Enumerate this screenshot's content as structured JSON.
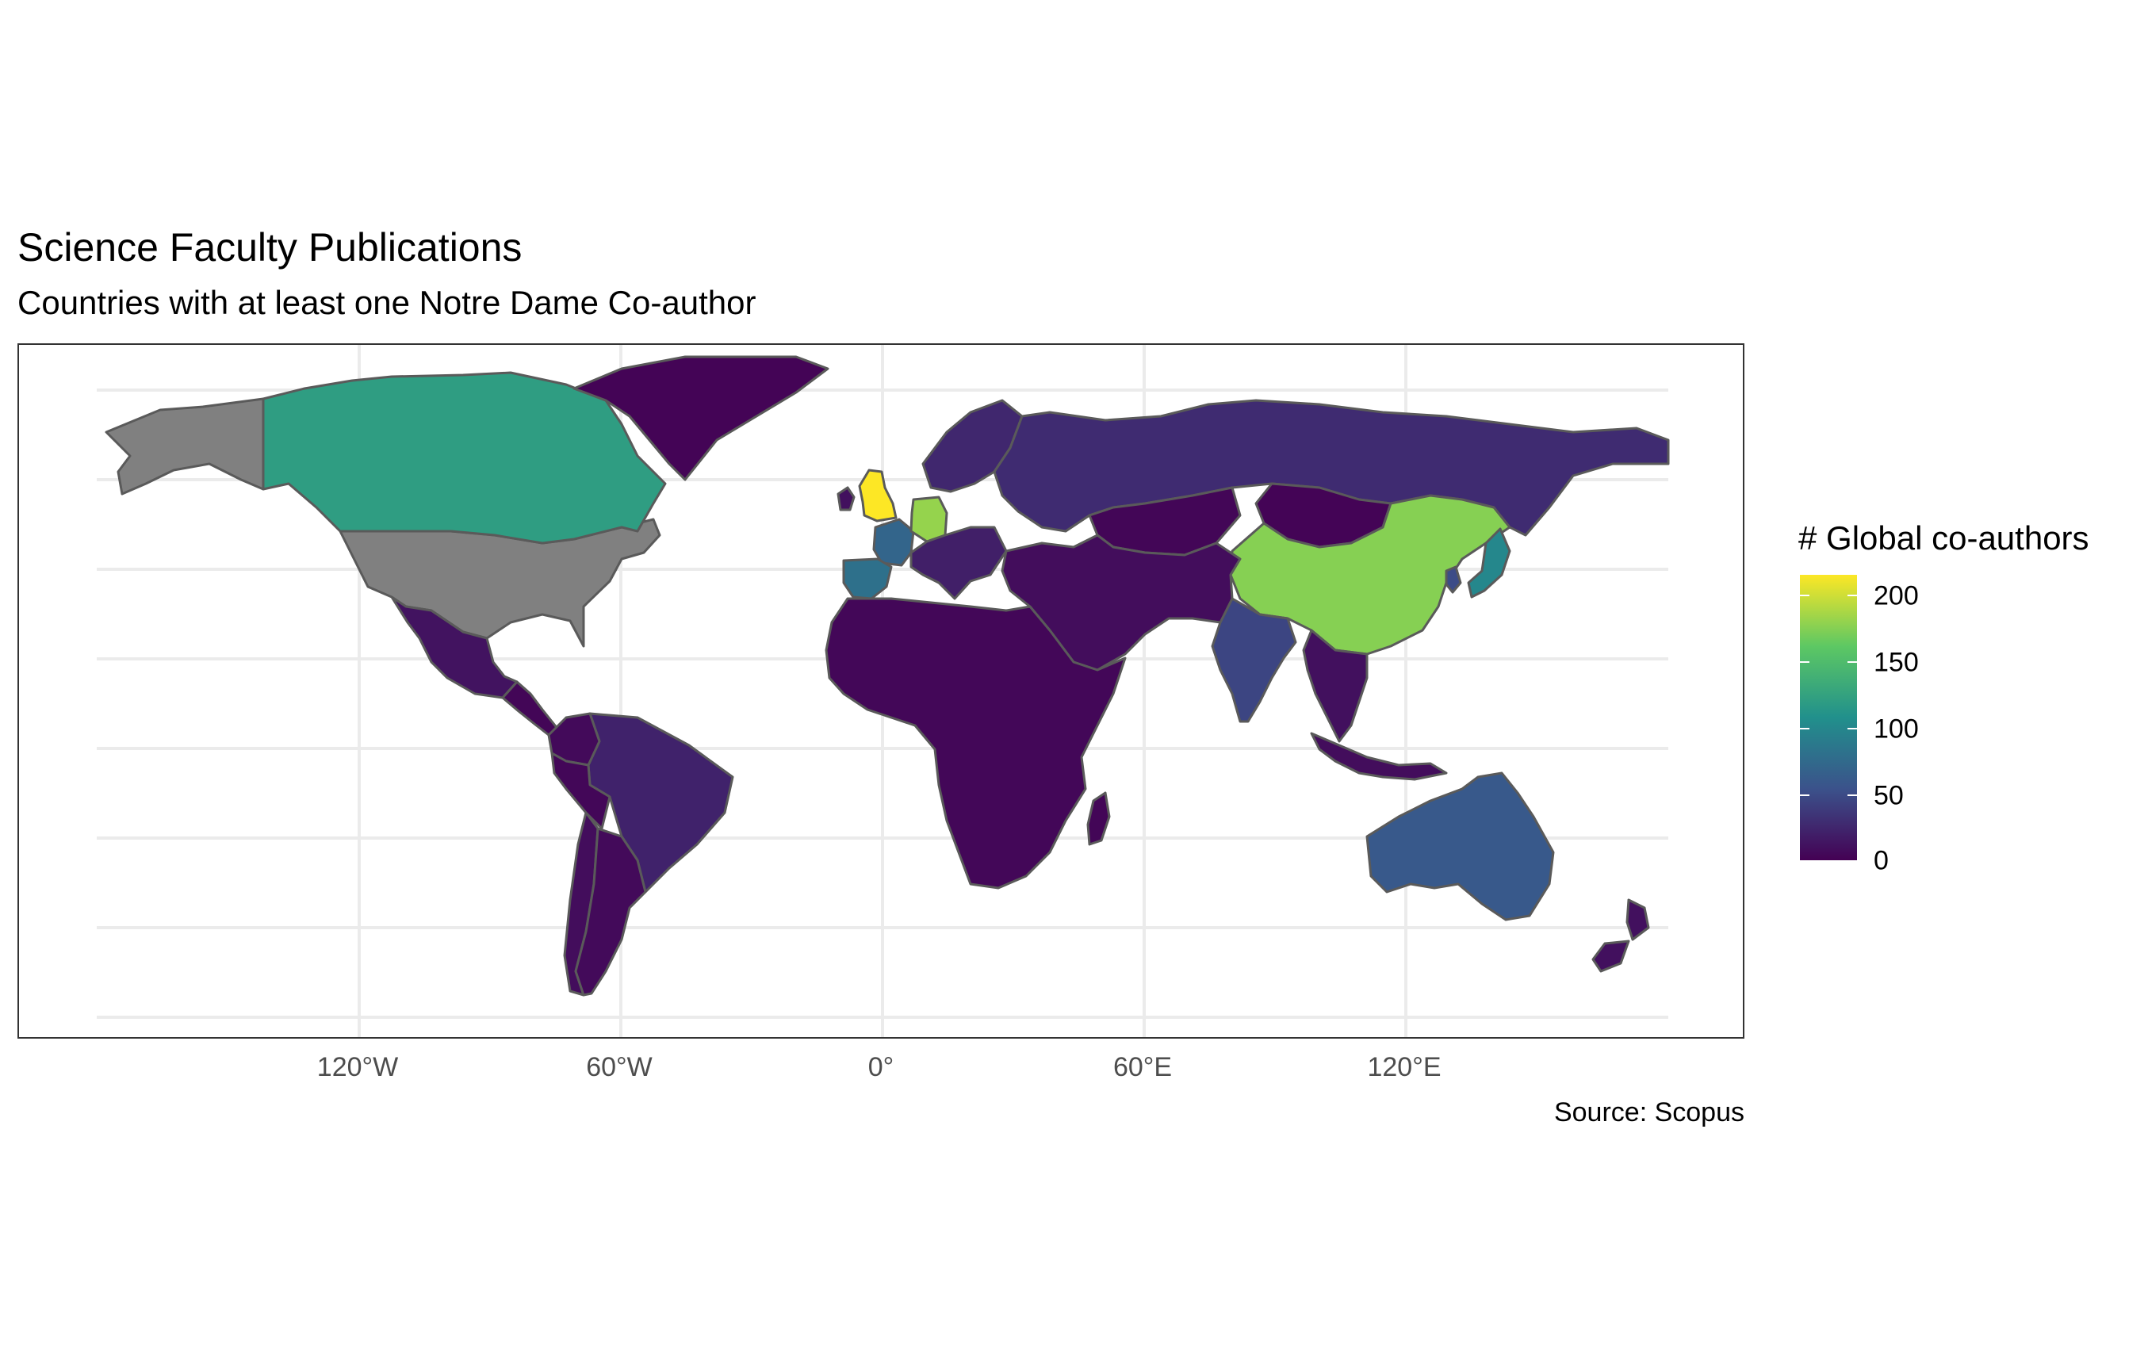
{
  "title": "Science Faculty Publications",
  "subtitle": "Countries with at least one Notre Dame Co-author",
  "caption": "Source: Scopus",
  "x_axis_ticks": [
    "120°W",
    "60°W",
    "0°",
    "60°E",
    "120°E"
  ],
  "legend": {
    "title": "# Global co-authors",
    "ticks": [
      "200",
      "150",
      "100",
      "50",
      "0"
    ]
  },
  "colors": {
    "missing": "#808080",
    "border": "#5a5a5a",
    "gradient": [
      "#440154",
      "#3b528b",
      "#21908c",
      "#5dc863",
      "#fde725"
    ]
  },
  "chart_data": {
    "type": "choropleth",
    "title": "Science Faculty Publications",
    "subtitle": "Countries with at least one Notre Dame Co-author",
    "caption": "Source: Scopus",
    "legend_title": "# Global co-authors",
    "scale": "viridis",
    "value_range": [
      0,
      215
    ],
    "legend_placement": "right",
    "grid": true,
    "x_ticks": [
      -120,
      -60,
      0,
      60,
      120
    ],
    "regions": [
      {
        "name": "United States",
        "value": null
      },
      {
        "name": "Alaska",
        "value": null
      },
      {
        "name": "Canada",
        "value": 120
      },
      {
        "name": "Greenland",
        "value": 2
      },
      {
        "name": "Mexico",
        "value": 12
      },
      {
        "name": "Central America",
        "value": 3
      },
      {
        "name": "Brazil",
        "value": 22
      },
      {
        "name": "Colombia",
        "value": 6
      },
      {
        "name": "Peru",
        "value": 4
      },
      {
        "name": "Chile",
        "value": 8
      },
      {
        "name": "Argentina",
        "value": 6
      },
      {
        "name": "United Kingdom",
        "value": 215
      },
      {
        "name": "Ireland",
        "value": 10
      },
      {
        "name": "France",
        "value": 70
      },
      {
        "name": "Spain",
        "value": 80
      },
      {
        "name": "Germany",
        "value": 180
      },
      {
        "name": "Europe (other)",
        "value": 20
      },
      {
        "name": "Scandinavia",
        "value": 25
      },
      {
        "name": "Russia",
        "value": 28
      },
      {
        "name": "Kazakhstan",
        "value": 3
      },
      {
        "name": "Mongolia",
        "value": 2
      },
      {
        "name": "China",
        "value": 175
      },
      {
        "name": "India",
        "value": 45
      },
      {
        "name": "Japan",
        "value": 100
      },
      {
        "name": "South Korea",
        "value": 50
      },
      {
        "name": "Middle East",
        "value": 8
      },
      {
        "name": "Africa",
        "value": 4
      },
      {
        "name": "Madagascar",
        "value": 3
      },
      {
        "name": "Southeast Asia",
        "value": 10
      },
      {
        "name": "Indonesia",
        "value": 8
      },
      {
        "name": "Australia",
        "value": 60
      },
      {
        "name": "New Zealand",
        "value": 10
      }
    ]
  }
}
